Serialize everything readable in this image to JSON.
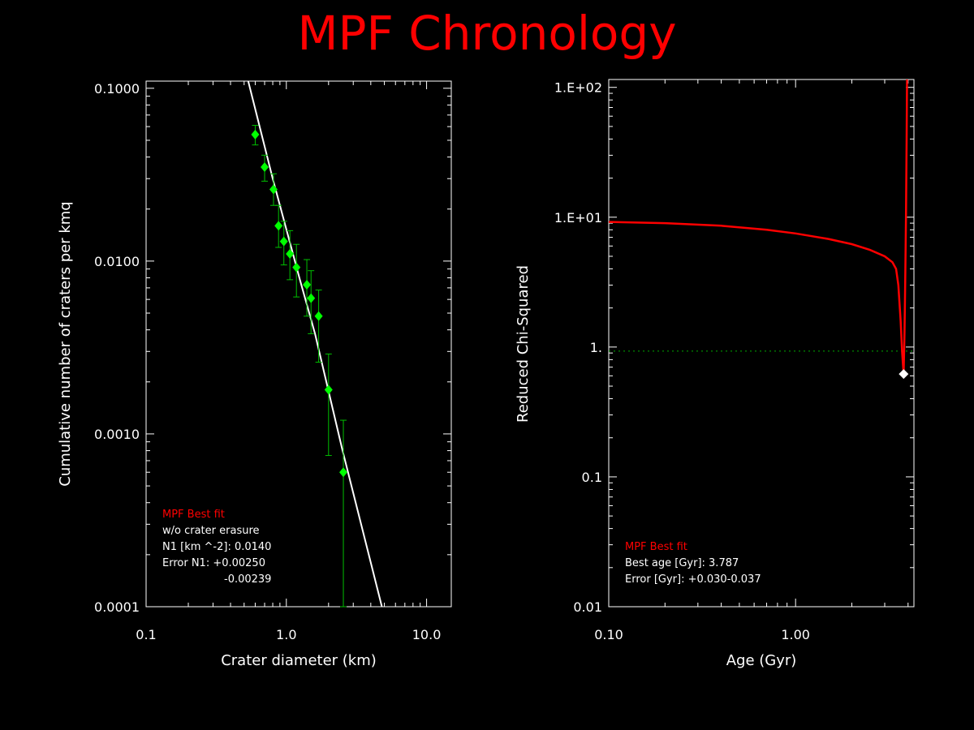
{
  "title": "MPF Chronology",
  "colors": {
    "background": "#000000",
    "title": "#ff0000",
    "frame": "#ffffff",
    "data_points": "#00ff00",
    "fit_line": "#ffffff",
    "chi_curve": "#ff0000",
    "reference_line": "#00aa00"
  },
  "chart_data": [
    {
      "type": "scatter",
      "xlabel": "Crater diameter (km)",
      "ylabel": "Cumulative number of craters per kmq",
      "xscale": "log",
      "yscale": "log",
      "xlim": [
        0.1,
        15
      ],
      "ylim": [
        0.0001,
        0.11
      ],
      "xticks": [
        {
          "v": 0.1,
          "label": "0.1"
        },
        {
          "v": 1,
          "label": "1.0"
        },
        {
          "v": 10,
          "label": "10.0"
        }
      ],
      "yticks": [
        {
          "v": 0.0001,
          "label": "0.0001"
        },
        {
          "v": 0.001,
          "label": "0.0010"
        },
        {
          "v": 0.01,
          "label": "0.0100"
        },
        {
          "v": 0.1,
          "label": "0.1000"
        }
      ],
      "series": [
        {
          "kind": "points_with_errorbars",
          "points": [
            {
              "x": 0.6,
              "y": 0.054,
              "lo": 0.047,
              "hi": 0.061
            },
            {
              "x": 0.7,
              "y": 0.035,
              "lo": 0.029,
              "hi": 0.041
            },
            {
              "x": 0.81,
              "y": 0.026,
              "lo": 0.021,
              "hi": 0.032
            },
            {
              "x": 0.88,
              "y": 0.016,
              "lo": 0.012,
              "hi": 0.021
            },
            {
              "x": 0.96,
              "y": 0.013,
              "lo": 0.0095,
              "hi": 0.017
            },
            {
              "x": 1.06,
              "y": 0.011,
              "lo": 0.0078,
              "hi": 0.015
            },
            {
              "x": 1.18,
              "y": 0.0092,
              "lo": 0.0062,
              "hi": 0.0125
            },
            {
              "x": 1.4,
              "y": 0.0073,
              "lo": 0.0048,
              "hi": 0.0102
            },
            {
              "x": 1.5,
              "y": 0.0061,
              "lo": 0.0038,
              "hi": 0.0088
            },
            {
              "x": 1.7,
              "y": 0.0048,
              "lo": 0.0026,
              "hi": 0.0068
            },
            {
              "x": 2.0,
              "y": 0.0018,
              "lo": 0.00075,
              "hi": 0.0029
            },
            {
              "x": 2.55,
              "y": 0.0006,
              "lo": 0.0001,
              "hi": 0.0012
            }
          ]
        },
        {
          "kind": "fit_line",
          "points": [
            {
              "x": 0.535,
              "y": 0.11
            },
            {
              "x": 0.8,
              "y": 0.03
            },
            {
              "x": 1.25,
              "y": 0.0078
            },
            {
              "x": 1.6,
              "y": 0.0038
            },
            {
              "x": 2.5,
              "y": 0.00082
            },
            {
              "x": 4.8,
              "y": 0.0001
            }
          ]
        }
      ],
      "annotation": {
        "heading": "MPF Best fit",
        "lines": [
          "w/o crater erasure",
          "N1 [km ^-2]: 0.0140",
          "Error N1: +0.00250",
          "-0.00239"
        ]
      }
    },
    {
      "type": "line",
      "xlabel": "Age (Gyr)",
      "ylabel": "Reduced Chi-Squared",
      "xscale": "log",
      "yscale": "log",
      "xlim": [
        0.1,
        4.3
      ],
      "ylim": [
        0.01,
        115
      ],
      "xticks": [
        {
          "v": 0.1,
          "label": "0.10"
        },
        {
          "v": 1,
          "label": "1.00"
        }
      ],
      "yticks": [
        {
          "v": 0.01,
          "label": "0.01"
        },
        {
          "v": 0.1,
          "label": "0.1"
        },
        {
          "v": 1,
          "label": "1."
        },
        {
          "v": 10,
          "label": "1.E+01"
        },
        {
          "v": 100,
          "label": "1.E+02"
        }
      ],
      "series": [
        {
          "kind": "chi_curve",
          "points": [
            {
              "x": 0.1,
              "y": 9.2
            },
            {
              "x": 0.2,
              "y": 9.0
            },
            {
              "x": 0.4,
              "y": 8.6
            },
            {
              "x": 0.7,
              "y": 8.0
            },
            {
              "x": 1.0,
              "y": 7.5
            },
            {
              "x": 1.5,
              "y": 6.8
            },
            {
              "x": 2.0,
              "y": 6.2
            },
            {
              "x": 2.5,
              "y": 5.6
            },
            {
              "x": 3.0,
              "y": 5.0
            },
            {
              "x": 3.3,
              "y": 4.5
            },
            {
              "x": 3.45,
              "y": 4.0
            },
            {
              "x": 3.55,
              "y": 3.0
            },
            {
              "x": 3.65,
              "y": 1.6
            },
            {
              "x": 3.72,
              "y": 0.9
            },
            {
              "x": 3.787,
              "y": 0.62
            },
            {
              "x": 3.83,
              "y": 1.3
            },
            {
              "x": 3.86,
              "y": 3.0
            },
            {
              "x": 3.9,
              "y": 10
            },
            {
              "x": 3.93,
              "y": 40
            },
            {
              "x": 3.95,
              "y": 115
            }
          ]
        },
        {
          "kind": "reference_line",
          "y": 0.93
        },
        {
          "kind": "best_point",
          "x": 3.787,
          "y": 0.62
        }
      ],
      "annotation": {
        "heading": "MPF Best fit",
        "lines": [
          "Best age [Gyr]: 3.787",
          "Error [Gyr]: +0.030-0.037"
        ]
      }
    }
  ]
}
